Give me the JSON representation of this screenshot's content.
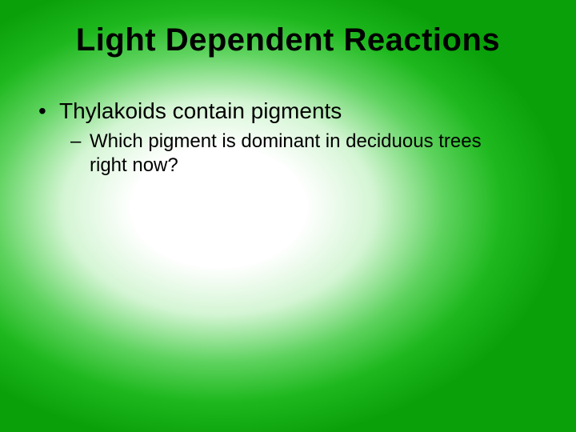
{
  "slide": {
    "title": "Light Dependent Reactions",
    "background": {
      "type": "radial-gradient",
      "center_color": "#ffffff",
      "outer_color": "#0aa00a",
      "mid_color": "#1eb81e"
    },
    "title_style": {
      "font_size_pt": 40,
      "font_weight": "bold",
      "color": "#000000",
      "align": "center"
    },
    "body_style": {
      "bullet_font_size_pt": 28,
      "sub_font_size_pt": 24,
      "color": "#000000",
      "font_family": "Arial"
    },
    "bullets": [
      {
        "marker": "•",
        "text": "Thylakoids contain pigments",
        "sub": [
          {
            "marker": "–",
            "text": "Which pigment is dominant in deciduous trees right now?"
          }
        ]
      }
    ]
  }
}
